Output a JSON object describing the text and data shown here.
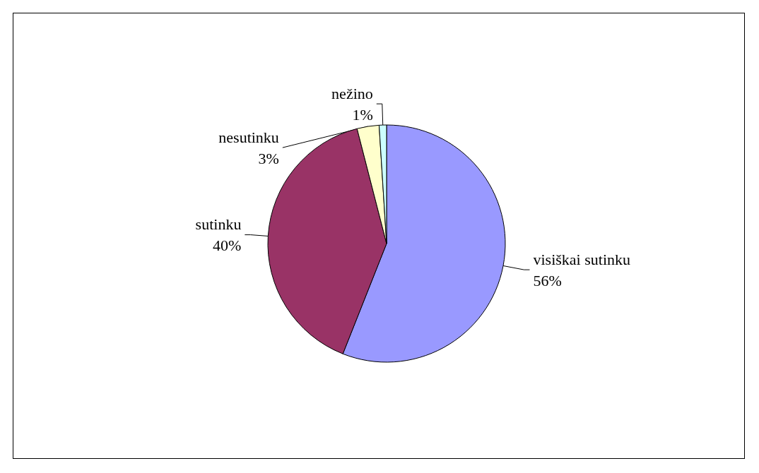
{
  "chart_data": {
    "type": "pie",
    "categories": [
      "visiškai sutinku",
      "sutinku",
      "nesutinku",
      "nežino"
    ],
    "values": [
      56,
      40,
      3,
      1
    ],
    "colors": [
      "#9999ff",
      "#993366",
      "#ffffcc",
      "#ccffff"
    ],
    "value_labels": [
      "56%",
      "40%",
      "3%",
      "1%"
    ],
    "legend": false
  }
}
